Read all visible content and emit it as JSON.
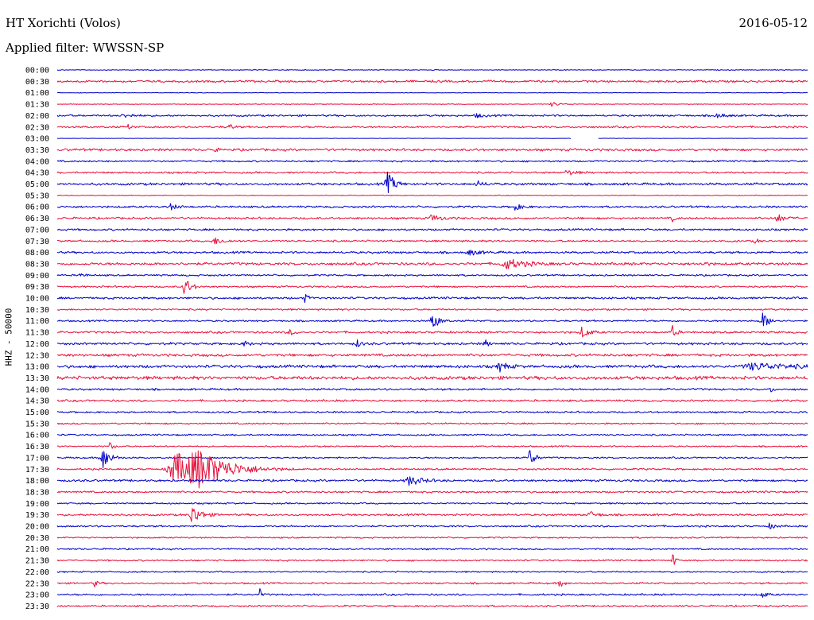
{
  "header": {
    "station": "HT Xorichti (Volos)",
    "date": "2016-05-12",
    "filter": "Applied filter: WWSSN-SP"
  },
  "chart_data": {
    "type": "line",
    "title": "HT Xorichti (Volos)",
    "ylabel": "HHZ - 50000",
    "xlabel": "",
    "time_labels": [
      "00:00",
      "00:30",
      "01:00",
      "01:30",
      "02:00",
      "02:30",
      "03:00",
      "03:30",
      "04:00",
      "04:30",
      "05:00",
      "05:30",
      "06:00",
      "06:30",
      "07:00",
      "07:30",
      "08:00",
      "08:30",
      "09:00",
      "09:30",
      "10:00",
      "10:30",
      "11:00",
      "11:30",
      "12:00",
      "12:30",
      "13:00",
      "13:30",
      "14:00",
      "14:30",
      "15:00",
      "15:30",
      "16:00",
      "16:30",
      "17:00",
      "17:30",
      "18:00",
      "18:30",
      "19:00",
      "19:30",
      "20:00",
      "20:30",
      "21:00",
      "21:30",
      "22:00",
      "22:30",
      "23:00",
      "23:30"
    ],
    "x_span_minutes": 30,
    "series_colors": [
      "#0000c8",
      "#e8103c"
    ],
    "trace_noise": [
      0.6,
      1.6,
      0.4,
      0.5,
      1.4,
      1.4,
      0.3,
      1.8,
      1.3,
      1.4,
      1.8,
      0.6,
      1.5,
      1.6,
      1.5,
      1.4,
      1.6,
      2.0,
      1.3,
      1.3,
      1.6,
      1.3,
      1.3,
      1.6,
      1.8,
      2.0,
      2.2,
      2.6,
      1.5,
      1.5,
      1.3,
      1.2,
      1.2,
      1.1,
      1.2,
      1.3,
      1.6,
      1.4,
      1.2,
      1.5,
      1.3,
      1.1,
      1.2,
      1.2,
      1.1,
      1.3,
      1.4,
      1.3
    ],
    "events": [
      {
        "trace": "01:30",
        "t": 0.66,
        "amp": 3,
        "dur": 0.012
      },
      {
        "trace": "02:00",
        "t": 0.09,
        "amp": 2,
        "dur": 0.02
      },
      {
        "trace": "02:00",
        "t": 0.56,
        "amp": 2.5,
        "dur": 0.012
      },
      {
        "trace": "02:00",
        "t": 0.88,
        "amp": 2.5,
        "dur": 0.015
      },
      {
        "trace": "02:30",
        "t": 0.095,
        "amp": 4,
        "dur": 0.004
      },
      {
        "trace": "02:30",
        "t": 0.23,
        "amp": 4,
        "dur": 0.006
      },
      {
        "trace": "03:30",
        "t": 0.21,
        "amp": 5,
        "dur": 0.003
      },
      {
        "trace": "04:30",
        "t": 0.68,
        "amp": 3,
        "dur": 0.015
      },
      {
        "trace": "05:00",
        "t": 0.44,
        "amp": 14,
        "dur": 0.012
      },
      {
        "trace": "05:00",
        "t": 0.56,
        "amp": 3,
        "dur": 0.012
      },
      {
        "trace": "06:00",
        "t": 0.15,
        "amp": 4,
        "dur": 0.012
      },
      {
        "trace": "06:00",
        "t": 0.61,
        "amp": 4,
        "dur": 0.012
      },
      {
        "trace": "06:30",
        "t": 0.5,
        "amp": 4,
        "dur": 0.015
      },
      {
        "trace": "06:30",
        "t": 0.82,
        "amp": 4,
        "dur": 0.004
      },
      {
        "trace": "06:30",
        "t": 0.96,
        "amp": 5,
        "dur": 0.012
      },
      {
        "trace": "07:30",
        "t": 0.21,
        "amp": 4,
        "dur": 0.015
      },
      {
        "trace": "07:30",
        "t": 0.93,
        "amp": 5,
        "dur": 0.004
      },
      {
        "trace": "08:00",
        "t": 0.55,
        "amp": 3,
        "dur": 0.02
      },
      {
        "trace": "08:30",
        "t": 0.6,
        "amp": 6,
        "dur": 0.03
      },
      {
        "trace": "08:30",
        "t": 0.86,
        "amp": 4,
        "dur": 0.006
      },
      {
        "trace": "09:00",
        "t": 0.03,
        "amp": 3,
        "dur": 0.008
      },
      {
        "trace": "09:30",
        "t": 0.17,
        "amp": 12,
        "dur": 0.01
      },
      {
        "trace": "10:00",
        "t": 0.33,
        "amp": 5,
        "dur": 0.006
      },
      {
        "trace": "11:00",
        "t": 0.5,
        "amp": 12,
        "dur": 0.01
      },
      {
        "trace": "11:00",
        "t": 0.94,
        "amp": 10,
        "dur": 0.012
      },
      {
        "trace": "11:30",
        "t": 0.31,
        "amp": 4,
        "dur": 0.008
      },
      {
        "trace": "11:30",
        "t": 0.7,
        "amp": 7,
        "dur": 0.012
      },
      {
        "trace": "11:30",
        "t": 0.82,
        "amp": 8,
        "dur": 0.006
      },
      {
        "trace": "12:00",
        "t": 0.25,
        "amp": 4,
        "dur": 0.006
      },
      {
        "trace": "12:00",
        "t": 0.4,
        "amp": 5,
        "dur": 0.006
      },
      {
        "trace": "12:00",
        "t": 0.57,
        "amp": 5,
        "dur": 0.006
      },
      {
        "trace": "13:00",
        "t": 0.59,
        "amp": 6,
        "dur": 0.012
      },
      {
        "trace": "13:00",
        "t": 0.93,
        "amp": 4,
        "dur": 0.06
      },
      {
        "trace": "14:00",
        "t": 0.95,
        "amp": 7,
        "dur": 0.003
      },
      {
        "trace": "16:30",
        "t": 0.07,
        "amp": 5,
        "dur": 0.006
      },
      {
        "trace": "17:00",
        "t": 0.06,
        "amp": 16,
        "dur": 0.012
      },
      {
        "trace": "17:00",
        "t": 0.63,
        "amp": 12,
        "dur": 0.008
      },
      {
        "trace": "17:30",
        "t": 0.16,
        "amp": 20,
        "dur": 0.045
      },
      {
        "trace": "17:30",
        "t": 0.19,
        "amp": 18,
        "dur": 0.05
      },
      {
        "trace": "18:00",
        "t": 0.47,
        "amp": 6,
        "dur": 0.02
      },
      {
        "trace": "19:30",
        "t": 0.18,
        "amp": 12,
        "dur": 0.015
      },
      {
        "trace": "19:30",
        "t": 0.71,
        "amp": 4,
        "dur": 0.012
      },
      {
        "trace": "20:00",
        "t": 0.95,
        "amp": 4,
        "dur": 0.008
      },
      {
        "trace": "21:30",
        "t": 0.82,
        "amp": 11,
        "dur": 0.004
      },
      {
        "trace": "22:30",
        "t": 0.05,
        "amp": 4,
        "dur": 0.006
      },
      {
        "trace": "22:30",
        "t": 0.67,
        "amp": 6,
        "dur": 0.006
      },
      {
        "trace": "23:00",
        "t": 0.27,
        "amp": 7,
        "dur": 0.003
      },
      {
        "trace": "23:00",
        "t": 0.94,
        "amp": 4,
        "dur": 0.008
      }
    ],
    "gaps": [
      {
        "trace": "03:00",
        "t0": 0.685,
        "t1": 0.72
      }
    ]
  }
}
